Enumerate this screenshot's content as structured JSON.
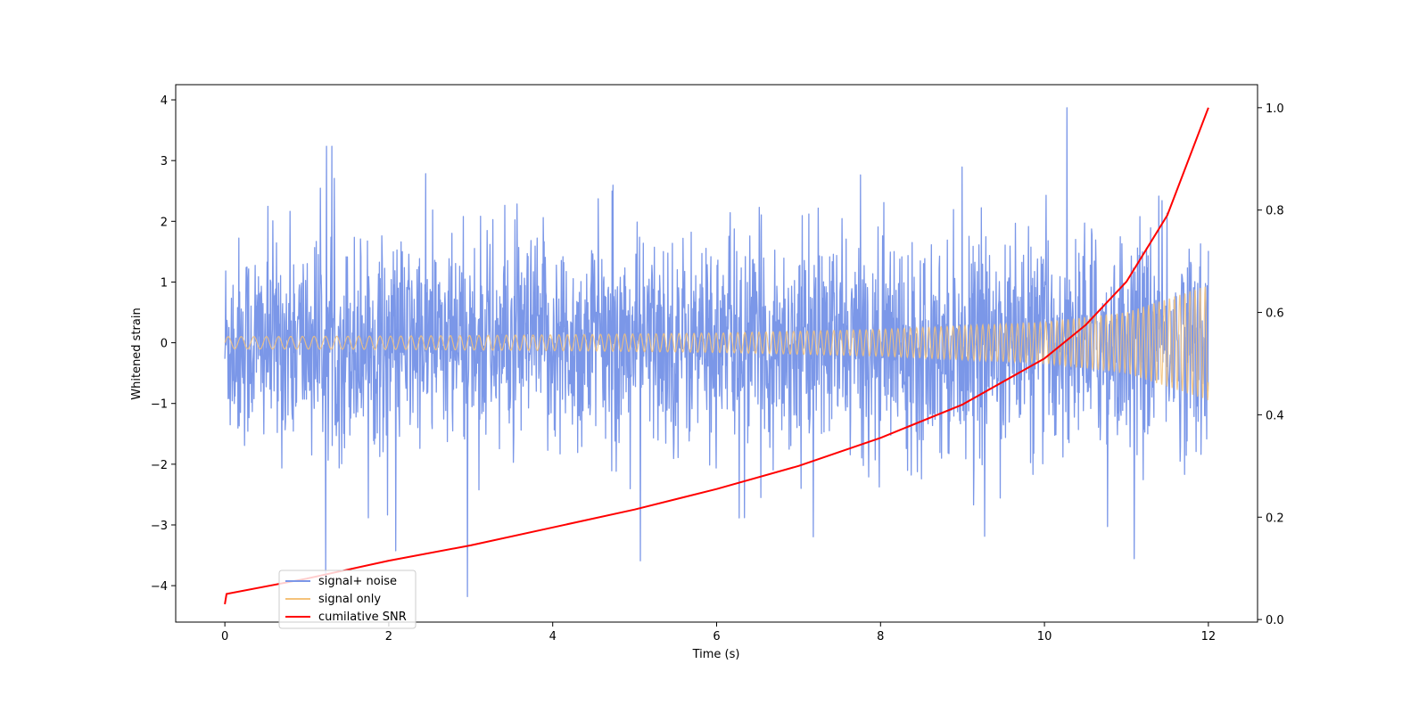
{
  "chart_data": {
    "type": "line",
    "xlabel": "Time (s)",
    "ylabel": "Whitened strain",
    "xlim": [
      -0.6,
      12.6
    ],
    "ylim": [
      -4.6,
      4.25
    ],
    "y2lim": [
      -0.005,
      1.045
    ],
    "x_ticks": [
      0,
      2,
      4,
      6,
      8,
      10,
      12
    ],
    "y_ticks": [
      -4,
      -3,
      -2,
      -1,
      0,
      1,
      2,
      3,
      4
    ],
    "y2_ticks": [
      0.0,
      0.2,
      0.4,
      0.6,
      0.8,
      1.0
    ],
    "x_tick_labels": [
      "0",
      "2",
      "4",
      "6",
      "8",
      "10",
      "12"
    ],
    "y_tick_labels": [
      "−4",
      "−3",
      "−2",
      "−1",
      "0",
      "1",
      "2",
      "3",
      "4"
    ],
    "y2_tick_labels": [
      "0.0",
      "0.2",
      "0.4",
      "0.6",
      "0.8",
      "1.0"
    ],
    "grid": false,
    "legend_placement": "lower-left",
    "series": [
      {
        "name": "signal+ noise",
        "color": "#7b97e8",
        "axis": "left",
        "description_values": {
          "x_range": [
            0,
            12
          ],
          "typical_abs_max": 2.5,
          "peak_max": 3.87,
          "peak_min": -4.18
        }
      },
      {
        "name": "signal only",
        "color": "#f5c27a",
        "axis": "left",
        "envelope": {
          "x": [
            0,
            2,
            4,
            6,
            8,
            10,
            11,
            12
          ],
          "amplitude": [
            0.1,
            0.11,
            0.13,
            0.16,
            0.22,
            0.34,
            0.5,
            0.95
          ]
        }
      },
      {
        "name": "cumilative SNR",
        "color": "#ff0000",
        "axis": "right",
        "x": [
          0,
          0.02,
          1,
          2,
          3,
          4,
          5,
          6,
          7,
          8,
          9,
          10,
          10.5,
          11,
          11.5,
          12
        ],
        "values": [
          0.03,
          0.05,
          0.08,
          0.115,
          0.145,
          0.18,
          0.215,
          0.255,
          0.3,
          0.355,
          0.42,
          0.51,
          0.575,
          0.66,
          0.79,
          1.0
        ]
      }
    ]
  }
}
